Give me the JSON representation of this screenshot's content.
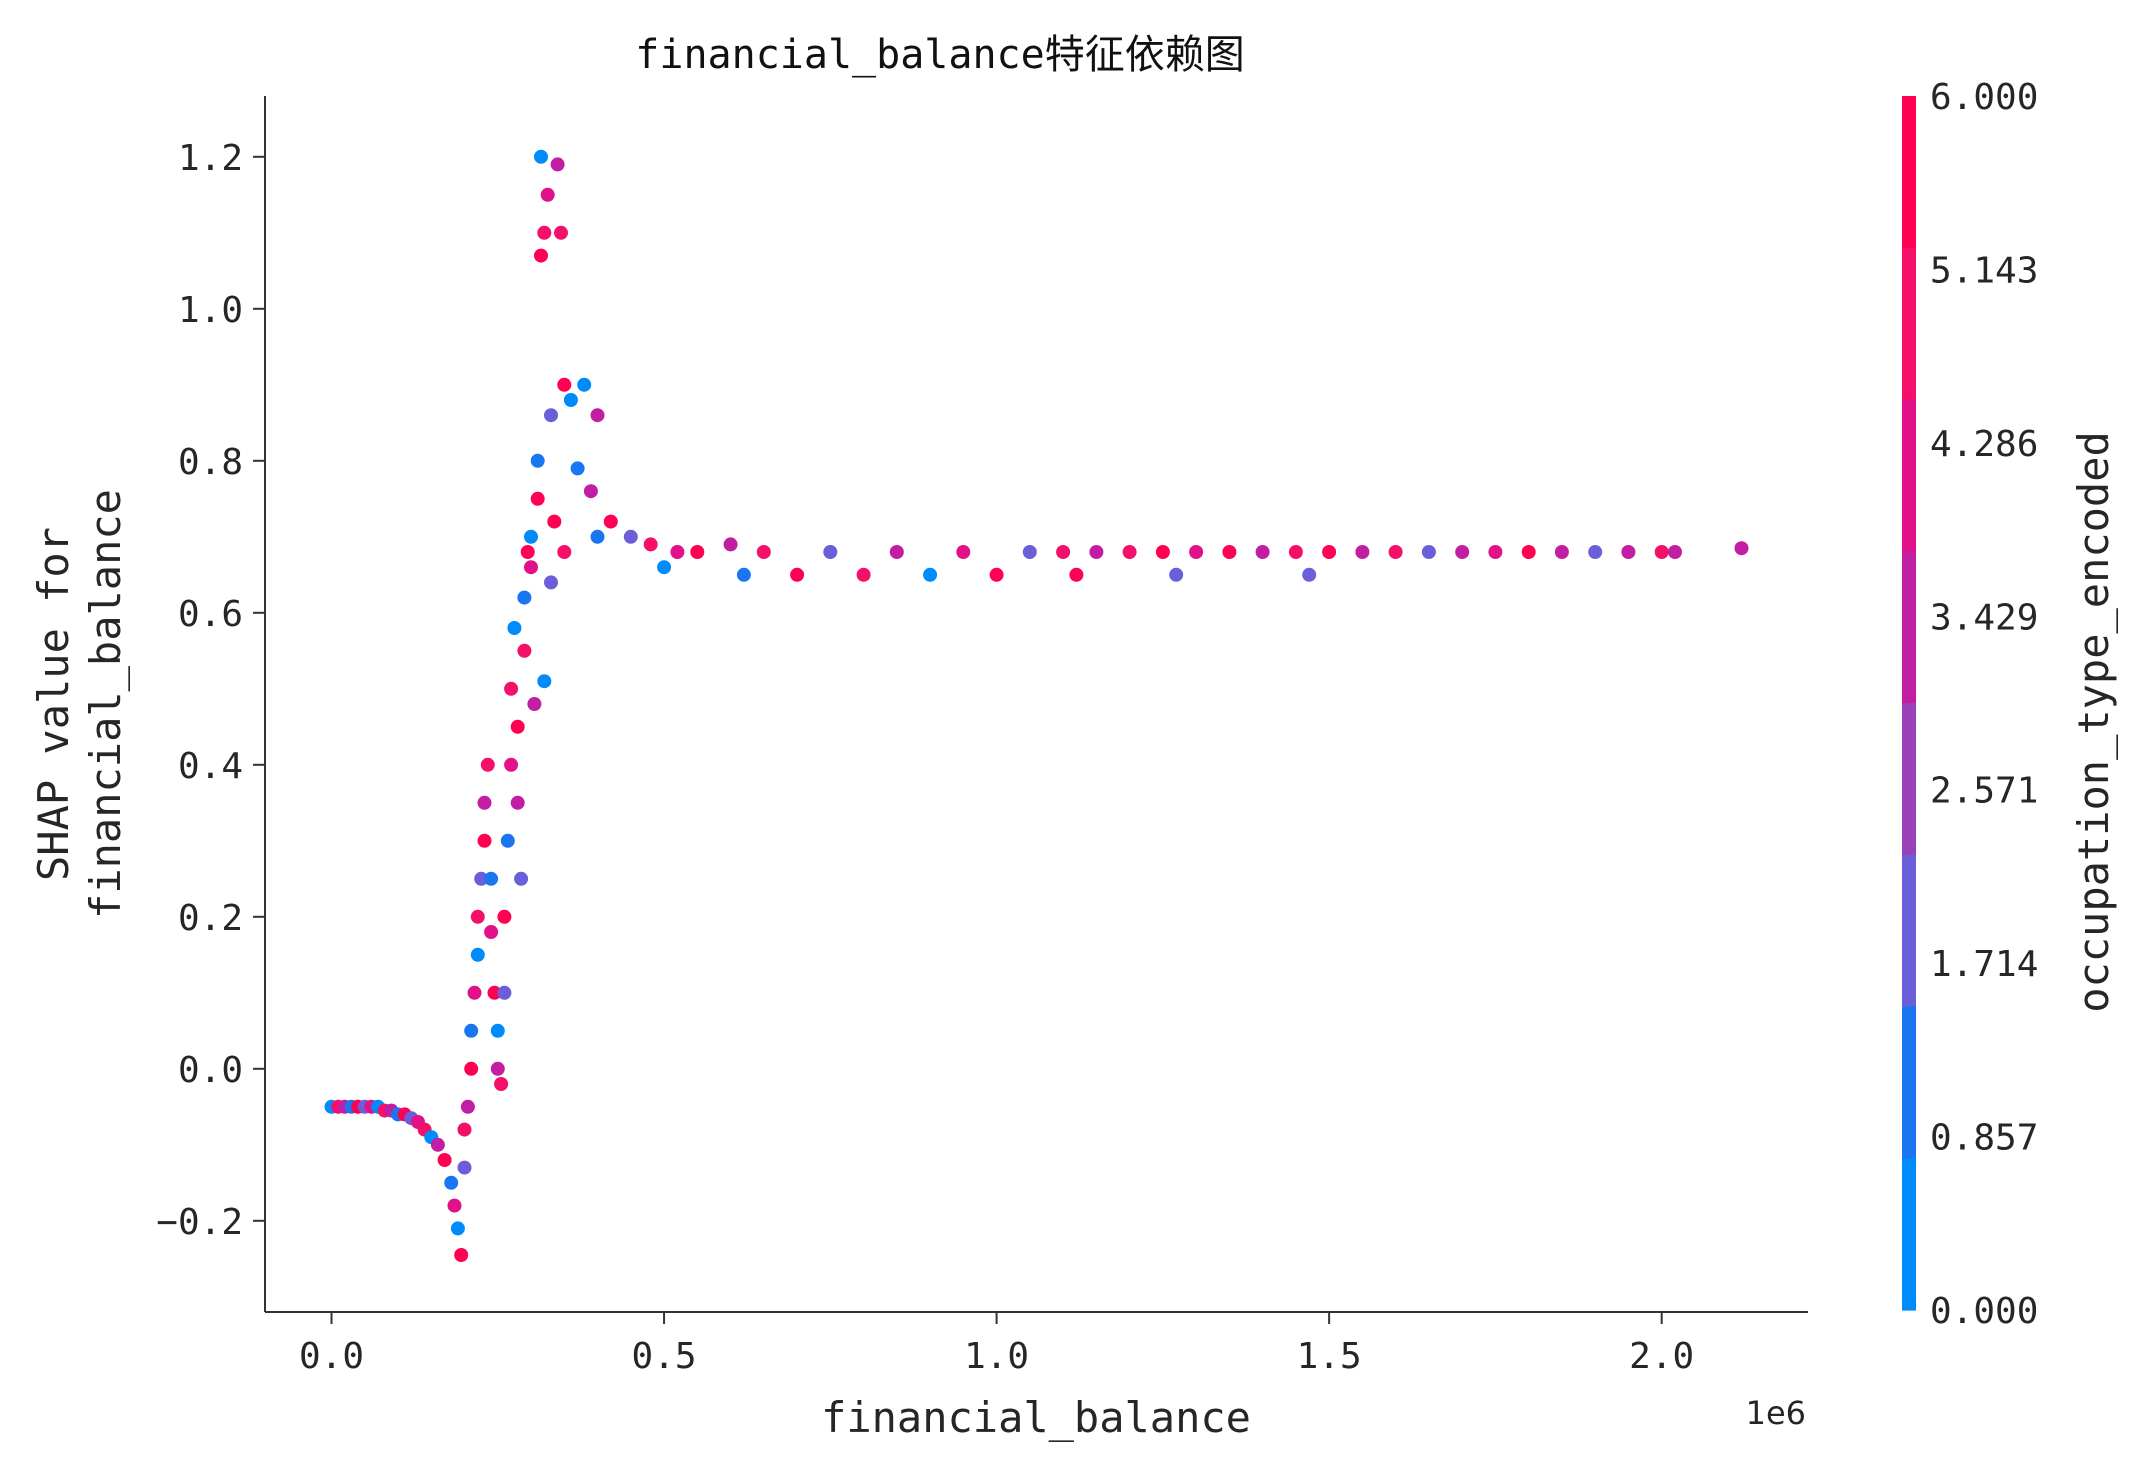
{
  "chart_data": {
    "type": "scatter",
    "title": "financial_balance特征依赖图",
    "xlabel": "financial_balance",
    "ylabel_lines": [
      "SHAP value for",
      "financial_balance"
    ],
    "x_offset_label": "1e6",
    "xlim": [
      -0.1,
      2.22
    ],
    "ylim": [
      -0.32,
      1.28
    ],
    "x_ticks": [
      0.0,
      0.5,
      1.0,
      1.5,
      2.0
    ],
    "x_tick_labels": [
      "0.0",
      "0.5",
      "1.0",
      "1.5",
      "2.0"
    ],
    "y_ticks": [
      -0.2,
      0.0,
      0.2,
      0.4,
      0.6,
      0.8,
      1.0,
      1.2
    ],
    "y_tick_labels": [
      "−0.2",
      "0.0",
      "0.2",
      "0.4",
      "0.6",
      "0.8",
      "1.0",
      "1.2"
    ],
    "colorbar": {
      "label": "occupation_type_encoded",
      "range": [
        0,
        6
      ],
      "ticks": [
        "0.000",
        "0.857",
        "1.714",
        "2.571",
        "3.429",
        "4.286",
        "5.143",
        "6.000"
      ],
      "colors": [
        "#008bfb",
        "#1a76f0",
        "#6a5fd8",
        "#9b41b8",
        "#c21ea4",
        "#e1118a",
        "#f41069",
        "#ff0052"
      ]
    },
    "points": [
      [
        0.0,
        -0.05,
        0
      ],
      [
        0.01,
        -0.05,
        5
      ],
      [
        0.02,
        -0.05,
        3
      ],
      [
        0.03,
        -0.05,
        1
      ],
      [
        0.04,
        -0.05,
        6
      ],
      [
        0.05,
        -0.05,
        2
      ],
      [
        0.06,
        -0.05,
        4
      ],
      [
        0.07,
        -0.05,
        0
      ],
      [
        0.08,
        -0.055,
        5
      ],
      [
        0.09,
        -0.055,
        3
      ],
      [
        0.1,
        -0.06,
        1
      ],
      [
        0.11,
        -0.06,
        6
      ],
      [
        0.12,
        -0.065,
        2
      ],
      [
        0.13,
        -0.07,
        4
      ],
      [
        0.14,
        -0.08,
        5
      ],
      [
        0.15,
        -0.09,
        0
      ],
      [
        0.16,
        -0.1,
        3
      ],
      [
        0.17,
        -0.12,
        6
      ],
      [
        0.18,
        -0.15,
        1
      ],
      [
        0.185,
        -0.18,
        4
      ],
      [
        0.19,
        -0.21,
        0
      ],
      [
        0.195,
        -0.245,
        6
      ],
      [
        0.2,
        -0.13,
        2
      ],
      [
        0.2,
        -0.08,
        5
      ],
      [
        0.205,
        -0.05,
        3
      ],
      [
        0.21,
        0.0,
        6
      ],
      [
        0.21,
        0.05,
        1
      ],
      [
        0.215,
        0.1,
        4
      ],
      [
        0.22,
        0.15,
        0
      ],
      [
        0.22,
        0.2,
        5
      ],
      [
        0.225,
        0.25,
        2
      ],
      [
        0.23,
        0.3,
        6
      ],
      [
        0.23,
        0.35,
        3
      ],
      [
        0.235,
        0.4,
        5
      ],
      [
        0.24,
        0.25,
        1
      ],
      [
        0.24,
        0.18,
        4
      ],
      [
        0.245,
        0.1,
        6
      ],
      [
        0.25,
        0.05,
        0
      ],
      [
        0.25,
        0.0,
        3
      ],
      [
        0.255,
        -0.02,
        5
      ],
      [
        0.26,
        0.1,
        2
      ],
      [
        0.26,
        0.2,
        6
      ],
      [
        0.265,
        0.3,
        1
      ],
      [
        0.27,
        0.4,
        4
      ],
      [
        0.27,
        0.5,
        5
      ],
      [
        0.275,
        0.58,
        0
      ],
      [
        0.28,
        0.45,
        6
      ],
      [
        0.28,
        0.35,
        3
      ],
      [
        0.285,
        0.25,
        2
      ],
      [
        0.29,
        0.55,
        5
      ],
      [
        0.29,
        0.62,
        1
      ],
      [
        0.295,
        0.68,
        6
      ],
      [
        0.3,
        0.7,
        0
      ],
      [
        0.3,
        0.66,
        4
      ],
      [
        0.305,
        0.48,
        3
      ],
      [
        0.31,
        0.8,
        1
      ],
      [
        0.31,
        0.75,
        6
      ],
      [
        0.315,
        1.2,
        0
      ],
      [
        0.315,
        1.07,
        6
      ],
      [
        0.32,
        1.1,
        5
      ],
      [
        0.325,
        1.15,
        4
      ],
      [
        0.33,
        0.86,
        2
      ],
      [
        0.335,
        0.72,
        6
      ],
      [
        0.34,
        1.19,
        3
      ],
      [
        0.345,
        1.1,
        5
      ],
      [
        0.35,
        0.9,
        6
      ],
      [
        0.36,
        0.88,
        0
      ],
      [
        0.37,
        0.79,
        1
      ],
      [
        0.38,
        0.9,
        0
      ],
      [
        0.39,
        0.76,
        3
      ],
      [
        0.4,
        0.86,
        3
      ],
      [
        0.32,
        0.51,
        0
      ],
      [
        0.33,
        0.64,
        2
      ],
      [
        0.35,
        0.68,
        5
      ],
      [
        0.4,
        0.7,
        1
      ],
      [
        0.42,
        0.72,
        6
      ],
      [
        0.45,
        0.7,
        2
      ],
      [
        0.48,
        0.69,
        5
      ],
      [
        0.5,
        0.66,
        0
      ],
      [
        0.52,
        0.68,
        4
      ],
      [
        0.55,
        0.68,
        6
      ],
      [
        0.6,
        0.69,
        3
      ],
      [
        0.62,
        0.65,
        1
      ],
      [
        0.65,
        0.68,
        5
      ],
      [
        0.7,
        0.65,
        6
      ],
      [
        0.75,
        0.68,
        2
      ],
      [
        0.8,
        0.65,
        5
      ],
      [
        0.85,
        0.68,
        3
      ],
      [
        0.9,
        0.65,
        0
      ],
      [
        0.95,
        0.68,
        4
      ],
      [
        1.0,
        0.65,
        6
      ],
      [
        1.05,
        0.68,
        2
      ],
      [
        1.1,
        0.68,
        5
      ],
      [
        1.12,
        0.65,
        6
      ],
      [
        1.15,
        0.68,
        3
      ],
      [
        1.2,
        0.68,
        5
      ],
      [
        1.25,
        0.68,
        6
      ],
      [
        1.27,
        0.65,
        2
      ],
      [
        1.3,
        0.68,
        4
      ],
      [
        1.35,
        0.68,
        6
      ],
      [
        1.4,
        0.68,
        3
      ],
      [
        1.45,
        0.68,
        5
      ],
      [
        1.47,
        0.65,
        2
      ],
      [
        1.5,
        0.68,
        6
      ],
      [
        1.55,
        0.68,
        3
      ],
      [
        1.6,
        0.68,
        5
      ],
      [
        1.65,
        0.68,
        2
      ],
      [
        1.7,
        0.68,
        3
      ],
      [
        1.75,
        0.68,
        4
      ],
      [
        1.8,
        0.68,
        6
      ],
      [
        1.85,
        0.68,
        3
      ],
      [
        1.9,
        0.68,
        2
      ],
      [
        1.95,
        0.68,
        3
      ],
      [
        2.0,
        0.68,
        5
      ],
      [
        2.02,
        0.68,
        3
      ],
      [
        2.12,
        0.685,
        3
      ]
    ]
  }
}
